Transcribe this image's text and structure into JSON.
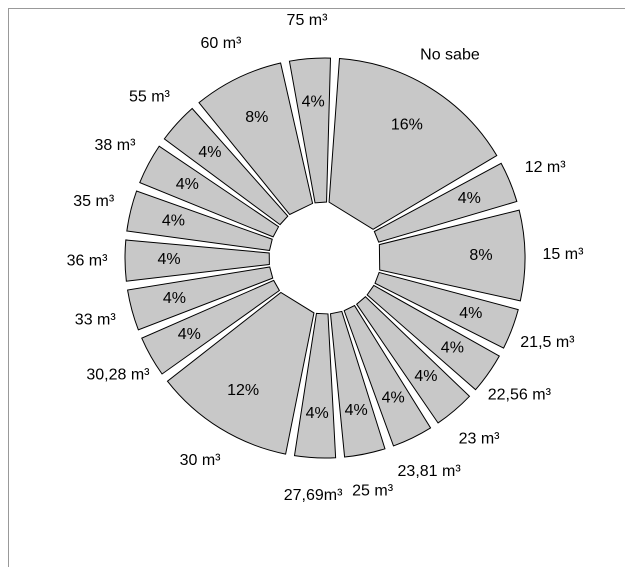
{
  "chart_data": {
    "type": "pie",
    "categories": [
      "No sabe",
      "12 m³",
      "15 m³",
      "21,5 m³",
      "22,56 m³",
      "23 m³",
      "23,81 m³",
      "25 m³",
      "27,69m³",
      "30 m³",
      "30,28 m³",
      "33 m³",
      "36 m³",
      "35 m³",
      "38 m³",
      "55 m³",
      "60 m³",
      "75 m³"
    ],
    "values": [
      16,
      4,
      8,
      4,
      4,
      4,
      4,
      4,
      4,
      12,
      4,
      4,
      4,
      4,
      4,
      4,
      8,
      4
    ],
    "value_labels": [
      "16%",
      "4%",
      "8%",
      "4%",
      "4%",
      "4%",
      "4%",
      "4%",
      "4%",
      "12%",
      "4%",
      "4%",
      "4%",
      "4%",
      "4%",
      "4%",
      "8%",
      "4%"
    ],
    "color": "#c8c8c8"
  }
}
